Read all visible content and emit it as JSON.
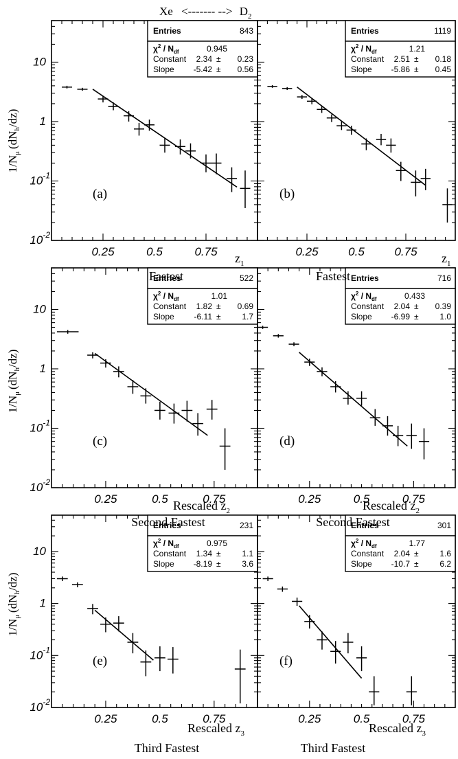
{
  "figure": {
    "header": {
      "left": "Xe",
      "arrow": "<------- -->",
      "right": "D",
      "right_sub": "2"
    },
    "ylabel": {
      "main": "1/N",
      "sub_mu": "μ",
      "paren": "(dN",
      "sub_h": "h",
      "end": "/dz)"
    },
    "rows": [
      {
        "xlabel": {
          "prefix": "",
          "var": "z",
          "sub": "1"
        },
        "captions": [
          "Fastest",
          "Fastest"
        ]
      },
      {
        "xlabel": {
          "prefix": "Rescaled ",
          "var": "z",
          "sub": "2"
        },
        "captions": [
          "Second Fastest",
          "Second Fastest"
        ]
      },
      {
        "xlabel": {
          "prefix": "Rescaled ",
          "var": "z",
          "sub": "3"
        },
        "captions": [
          "Third Fastest",
          "Third Fastest"
        ]
      }
    ],
    "stats_labels": {
      "entries": "Entries",
      "chi": "χ",
      "chi_sup": "2",
      "ndf": " / N",
      "ndf_sub": "df",
      "constant": "Constant",
      "slope": "Slope",
      "pm": "±"
    }
  },
  "chart_data": [
    {
      "type": "scatter",
      "label": "(a)",
      "target": "D2",
      "row": 0,
      "col": 0,
      "ylog": true,
      "ylim": [
        0.01,
        50
      ],
      "xlim": [
        0,
        1
      ],
      "xticks": [
        "0.25",
        "0.5",
        "0.75"
      ],
      "xtick_values": [
        0.25,
        0.5,
        0.75
      ],
      "ytick_labels": [
        {
          "base": "10",
          "exp": "-2",
          "v": 0.01
        },
        {
          "base": "10",
          "exp": "-1",
          "v": 0.1
        },
        {
          "base": "1",
          "exp": "",
          "v": 1
        },
        {
          "base": "10",
          "exp": "",
          "v": 10
        }
      ],
      "stats": {
        "entries": "843",
        "chi2": "0.945",
        "constant": "2.34",
        "constant_err": "0.23",
        "slope": "-5.42",
        "slope_err": "0.56"
      },
      "fit": {
        "constant": 2.34,
        "slope": -5.42,
        "x_range": [
          0.2,
          0.9
        ]
      },
      "points": [
        {
          "x": 0.075,
          "y": 3.8,
          "xerr": 0.025,
          "ylo": 3.6,
          "yhi": 4.0
        },
        {
          "x": 0.15,
          "y": 3.5,
          "xerr": 0.025,
          "ylo": 3.3,
          "yhi": 3.7
        },
        {
          "x": 0.25,
          "y": 2.4,
          "xerr": 0.025,
          "ylo": 2.1,
          "yhi": 2.7
        },
        {
          "x": 0.3,
          "y": 1.8,
          "xerr": 0.025,
          "ylo": 1.55,
          "yhi": 2.1
        },
        {
          "x": 0.375,
          "y": 1.25,
          "xerr": 0.025,
          "ylo": 1.0,
          "yhi": 1.5
        },
        {
          "x": 0.425,
          "y": 0.75,
          "xerr": 0.025,
          "ylo": 0.58,
          "yhi": 0.95
        },
        {
          "x": 0.475,
          "y": 0.88,
          "xerr": 0.025,
          "ylo": 0.7,
          "yhi": 1.08
        },
        {
          "x": 0.55,
          "y": 0.4,
          "xerr": 0.025,
          "ylo": 0.3,
          "yhi": 0.52
        },
        {
          "x": 0.625,
          "y": 0.38,
          "xerr": 0.025,
          "ylo": 0.28,
          "yhi": 0.5
        },
        {
          "x": 0.675,
          "y": 0.32,
          "xerr": 0.025,
          "ylo": 0.24,
          "yhi": 0.43
        },
        {
          "x": 0.75,
          "y": 0.2,
          "xerr": 0.025,
          "ylo": 0.14,
          "yhi": 0.28
        },
        {
          "x": 0.8,
          "y": 0.2,
          "xerr": 0.025,
          "ylo": 0.13,
          "yhi": 0.29
        },
        {
          "x": 0.875,
          "y": 0.11,
          "xerr": 0.025,
          "ylo": 0.065,
          "yhi": 0.17
        },
        {
          "x": 0.94,
          "y": 0.075,
          "xerr": 0.025,
          "ylo": 0.035,
          "yhi": 0.15
        }
      ]
    },
    {
      "type": "scatter",
      "label": "(b)",
      "target": "Xe",
      "row": 0,
      "col": 1,
      "ylog": true,
      "ylim": [
        0.01,
        50
      ],
      "xlim": [
        0,
        1
      ],
      "xticks": [
        "0.25",
        "0.5",
        "0.75"
      ],
      "xtick_values": [
        0.25,
        0.5,
        0.75
      ],
      "ytick_labels": [],
      "stats": {
        "entries": "1119",
        "chi2": "1.21",
        "constant": "2.51",
        "constant_err": "0.18",
        "slope": "-5.86",
        "slope_err": "0.45"
      },
      "fit": {
        "constant": 2.51,
        "slope": -5.86,
        "x_range": [
          0.2,
          0.85
        ]
      },
      "points": [
        {
          "x": 0.075,
          "y": 3.9,
          "xerr": 0.025,
          "ylo": 3.7,
          "yhi": 4.1
        },
        {
          "x": 0.15,
          "y": 3.6,
          "xerr": 0.025,
          "ylo": 3.4,
          "yhi": 3.8
        },
        {
          "x": 0.225,
          "y": 2.6,
          "xerr": 0.025,
          "ylo": 2.4,
          "yhi": 2.8
        },
        {
          "x": 0.275,
          "y": 2.2,
          "xerr": 0.025,
          "ylo": 1.95,
          "yhi": 2.45
        },
        {
          "x": 0.325,
          "y": 1.6,
          "xerr": 0.025,
          "ylo": 1.4,
          "yhi": 1.8
        },
        {
          "x": 0.375,
          "y": 1.15,
          "xerr": 0.025,
          "ylo": 0.98,
          "yhi": 1.32
        },
        {
          "x": 0.425,
          "y": 0.85,
          "xerr": 0.025,
          "ylo": 0.72,
          "yhi": 1.0
        },
        {
          "x": 0.475,
          "y": 0.72,
          "xerr": 0.025,
          "ylo": 0.6,
          "yhi": 0.85
        },
        {
          "x": 0.55,
          "y": 0.42,
          "xerr": 0.025,
          "ylo": 0.33,
          "yhi": 0.52
        },
        {
          "x": 0.625,
          "y": 0.5,
          "xerr": 0.025,
          "ylo": 0.4,
          "yhi": 0.62
        },
        {
          "x": 0.675,
          "y": 0.4,
          "xerr": 0.025,
          "ylo": 0.3,
          "yhi": 0.52
        },
        {
          "x": 0.725,
          "y": 0.15,
          "xerr": 0.025,
          "ylo": 0.1,
          "yhi": 0.21
        },
        {
          "x": 0.8,
          "y": 0.095,
          "xerr": 0.025,
          "ylo": 0.055,
          "yhi": 0.15
        },
        {
          "x": 0.85,
          "y": 0.11,
          "xerr": 0.025,
          "ylo": 0.07,
          "yhi": 0.16
        },
        {
          "x": 0.96,
          "y": 0.04,
          "xerr": 0.025,
          "ylo": 0.02,
          "yhi": 0.075
        }
      ]
    },
    {
      "type": "scatter",
      "label": "(c)",
      "target": "D2",
      "row": 1,
      "col": 0,
      "ylog": true,
      "ylim": [
        0.01,
        50
      ],
      "xlim": [
        0,
        0.95
      ],
      "xticks": [
        "0.25",
        "0.5",
        "0.75"
      ],
      "xtick_values": [
        0.25,
        0.5,
        0.75
      ],
      "ytick_labels": [
        {
          "base": "10",
          "exp": "-2",
          "v": 0.01
        },
        {
          "base": "10",
          "exp": "-1",
          "v": 0.1
        },
        {
          "base": "1",
          "exp": "",
          "v": 1
        },
        {
          "base": "10",
          "exp": "",
          "v": 10
        }
      ],
      "stats": {
        "entries": "522",
        "chi2": "1.01",
        "constant": "1.82",
        "constant_err": "0.69",
        "slope": "-6.11",
        "slope_err": "1.7"
      },
      "fit": {
        "constant": 1.82,
        "slope": -6.11,
        "x_range": [
          0.2,
          0.72
        ]
      },
      "points": [
        {
          "x": 0.075,
          "y": 4.2,
          "xerr": 0.05,
          "ylo": 3.9,
          "yhi": 4.5
        },
        {
          "x": 0.19,
          "y": 1.7,
          "xerr": 0.025,
          "ylo": 1.5,
          "yhi": 1.9
        },
        {
          "x": 0.25,
          "y": 1.25,
          "xerr": 0.025,
          "ylo": 1.05,
          "yhi": 1.45
        },
        {
          "x": 0.31,
          "y": 0.9,
          "xerr": 0.025,
          "ylo": 0.72,
          "yhi": 1.1
        },
        {
          "x": 0.375,
          "y": 0.5,
          "xerr": 0.025,
          "ylo": 0.38,
          "yhi": 0.65
        },
        {
          "x": 0.435,
          "y": 0.35,
          "xerr": 0.025,
          "ylo": 0.26,
          "yhi": 0.47
        },
        {
          "x": 0.5,
          "y": 0.2,
          "xerr": 0.025,
          "ylo": 0.14,
          "yhi": 0.28
        },
        {
          "x": 0.565,
          "y": 0.18,
          "xerr": 0.025,
          "ylo": 0.12,
          "yhi": 0.26
        },
        {
          "x": 0.625,
          "y": 0.2,
          "xerr": 0.025,
          "ylo": 0.13,
          "yhi": 0.29
        },
        {
          "x": 0.675,
          "y": 0.12,
          "xerr": 0.025,
          "ylo": 0.075,
          "yhi": 0.18
        },
        {
          "x": 0.74,
          "y": 0.21,
          "xerr": 0.025,
          "ylo": 0.14,
          "yhi": 0.3
        },
        {
          "x": 0.8,
          "y": 0.05,
          "xerr": 0.025,
          "ylo": 0.02,
          "yhi": 0.1
        }
      ]
    },
    {
      "type": "scatter",
      "label": "(d)",
      "target": "Xe",
      "row": 1,
      "col": 1,
      "ylog": true,
      "ylim": [
        0.01,
        50
      ],
      "xlim": [
        0,
        0.95
      ],
      "xticks": [
        "0.25",
        "0.5",
        "0.75"
      ],
      "xtick_values": [
        0.25,
        0.5,
        0.75
      ],
      "ytick_labels": [],
      "stats": {
        "entries": "716",
        "chi2": "0.433",
        "constant": "2.04",
        "constant_err": "0.39",
        "slope": "-6.99",
        "slope_err": "1.0"
      },
      "fit": {
        "constant": 2.04,
        "slope": -6.99,
        "x_range": [
          0.2,
          0.72
        ]
      },
      "points": [
        {
          "x": 0.025,
          "y": 5.0,
          "xerr": 0.025,
          "ylo": 4.7,
          "yhi": 5.3
        },
        {
          "x": 0.1,
          "y": 3.6,
          "xerr": 0.025,
          "ylo": 3.35,
          "yhi": 3.85
        },
        {
          "x": 0.175,
          "y": 2.6,
          "xerr": 0.025,
          "ylo": 2.4,
          "yhi": 2.8
        },
        {
          "x": 0.25,
          "y": 1.3,
          "xerr": 0.025,
          "ylo": 1.12,
          "yhi": 1.48
        },
        {
          "x": 0.31,
          "y": 0.9,
          "xerr": 0.025,
          "ylo": 0.75,
          "yhi": 1.06
        },
        {
          "x": 0.375,
          "y": 0.5,
          "xerr": 0.025,
          "ylo": 0.4,
          "yhi": 0.62
        },
        {
          "x": 0.435,
          "y": 0.32,
          "xerr": 0.025,
          "ylo": 0.25,
          "yhi": 0.42
        },
        {
          "x": 0.5,
          "y": 0.32,
          "xerr": 0.025,
          "ylo": 0.24,
          "yhi": 0.42
        },
        {
          "x": 0.565,
          "y": 0.15,
          "xerr": 0.025,
          "ylo": 0.11,
          "yhi": 0.21
        },
        {
          "x": 0.625,
          "y": 0.11,
          "xerr": 0.025,
          "ylo": 0.075,
          "yhi": 0.16
        },
        {
          "x": 0.675,
          "y": 0.075,
          "xerr": 0.025,
          "ylo": 0.05,
          "yhi": 0.11
        },
        {
          "x": 0.74,
          "y": 0.075,
          "xerr": 0.025,
          "ylo": 0.045,
          "yhi": 0.12
        },
        {
          "x": 0.8,
          "y": 0.06,
          "xerr": 0.025,
          "ylo": 0.03,
          "yhi": 0.1
        }
      ]
    },
    {
      "type": "scatter",
      "label": "(e)",
      "target": "D2",
      "row": 2,
      "col": 0,
      "ylog": true,
      "ylim": [
        0.01,
        50
      ],
      "xlim": [
        0,
        0.95
      ],
      "xticks": [
        "0.25",
        "0.5",
        "0.75"
      ],
      "xtick_values": [
        0.25,
        0.5,
        0.75
      ],
      "ytick_labels": [
        {
          "base": "10",
          "exp": "-2",
          "v": 0.01
        },
        {
          "base": "10",
          "exp": "-1",
          "v": 0.1
        },
        {
          "base": "1",
          "exp": "",
          "v": 1
        },
        {
          "base": "10",
          "exp": "",
          "v": 10
        }
      ],
      "stats": {
        "entries": "231",
        "chi2": "0.975",
        "constant": "1.34",
        "constant_err": "1.1",
        "slope": "-8.19",
        "slope_err": "3.6"
      },
      "fit": {
        "constant": 1.34,
        "slope": -8.19,
        "x_range": [
          0.2,
          0.47
        ]
      },
      "points": [
        {
          "x": 0.05,
          "y": 3.0,
          "xerr": 0.025,
          "ylo": 2.7,
          "yhi": 3.3
        },
        {
          "x": 0.12,
          "y": 2.3,
          "xerr": 0.025,
          "ylo": 2.05,
          "yhi": 2.55
        },
        {
          "x": 0.19,
          "y": 0.8,
          "xerr": 0.025,
          "ylo": 0.62,
          "yhi": 0.98
        },
        {
          "x": 0.25,
          "y": 0.4,
          "xerr": 0.025,
          "ylo": 0.28,
          "yhi": 0.54
        },
        {
          "x": 0.31,
          "y": 0.42,
          "xerr": 0.025,
          "ylo": 0.29,
          "yhi": 0.57
        },
        {
          "x": 0.375,
          "y": 0.18,
          "xerr": 0.025,
          "ylo": 0.11,
          "yhi": 0.27
        },
        {
          "x": 0.435,
          "y": 0.075,
          "xerr": 0.025,
          "ylo": 0.04,
          "yhi": 0.125
        },
        {
          "x": 0.5,
          "y": 0.09,
          "xerr": 0.025,
          "ylo": 0.05,
          "yhi": 0.15
        },
        {
          "x": 0.56,
          "y": 0.085,
          "xerr": 0.025,
          "ylo": 0.045,
          "yhi": 0.145
        },
        {
          "x": 0.87,
          "y": 0.055,
          "xerr": 0.025,
          "ylo": 0.012,
          "yhi": 0.13
        }
      ]
    },
    {
      "type": "scatter",
      "label": "(f)",
      "target": "Xe",
      "row": 2,
      "col": 1,
      "ylog": true,
      "ylim": [
        0.01,
        50
      ],
      "xlim": [
        0,
        0.95
      ],
      "xticks": [
        "0.25",
        "0.5",
        "0.75"
      ],
      "xtick_values": [
        0.25,
        0.5,
        0.75
      ],
      "ytick_labels": [],
      "stats": {
        "entries": "301",
        "chi2": "1.77",
        "constant": "2.04",
        "constant_err": "1.6",
        "slope": "-10.7",
        "slope_err": "6.2"
      },
      "fit": {
        "constant": 2.04,
        "slope": -10.7,
        "x_range": [
          0.2,
          0.5
        ]
      },
      "points": [
        {
          "x": 0.05,
          "y": 3.0,
          "xerr": 0.025,
          "ylo": 2.7,
          "yhi": 3.3
        },
        {
          "x": 0.12,
          "y": 1.9,
          "xerr": 0.025,
          "ylo": 1.68,
          "yhi": 2.12
        },
        {
          "x": 0.19,
          "y": 1.1,
          "xerr": 0.025,
          "ylo": 0.9,
          "yhi": 1.3
        },
        {
          "x": 0.25,
          "y": 0.45,
          "xerr": 0.025,
          "ylo": 0.33,
          "yhi": 0.6
        },
        {
          "x": 0.31,
          "y": 0.2,
          "xerr": 0.025,
          "ylo": 0.13,
          "yhi": 0.29
        },
        {
          "x": 0.375,
          "y": 0.12,
          "xerr": 0.025,
          "ylo": 0.07,
          "yhi": 0.19
        },
        {
          "x": 0.435,
          "y": 0.18,
          "xerr": 0.025,
          "ylo": 0.11,
          "yhi": 0.27
        },
        {
          "x": 0.5,
          "y": 0.09,
          "xerr": 0.025,
          "ylo": 0.05,
          "yhi": 0.15
        },
        {
          "x": 0.56,
          "y": 0.02,
          "xerr": 0.025,
          "ylo": 0.011,
          "yhi": 0.04
        },
        {
          "x": 0.74,
          "y": 0.02,
          "xerr": 0.025,
          "ylo": 0.011,
          "yhi": 0.04
        }
      ]
    }
  ]
}
